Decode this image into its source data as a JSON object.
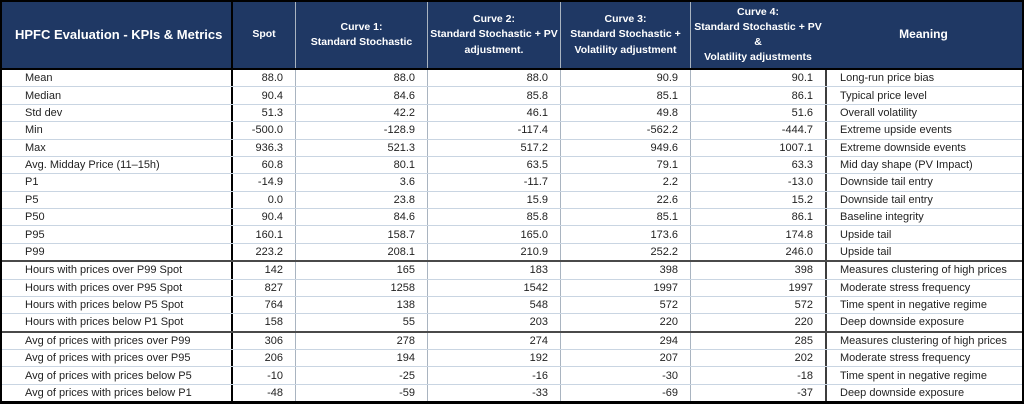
{
  "colors": {
    "header_bg": "#1f3864",
    "header_text": "#ffffff",
    "grid_horizontal": "#c9d5e2",
    "grid_vertical": "#a9b4c0",
    "divider_black": "#000000",
    "group_separator": "#4a4a4a"
  },
  "header": {
    "title": "HPFC Evaluation - KPIs & Metrics",
    "columns": [
      "Spot",
      "Curve 1:\nStandard Stochastic",
      "Curve 2:\nStandard Stochastic + PV\nadjustment.",
      "Curve 3:\nStandard Stochastic +\nVolatility adjustment",
      "Curve 4:\nStandard Stochastic + PV &\nVolatility adjustments",
      "Meaning"
    ]
  },
  "rows": [
    {
      "label": "Mean",
      "values": [
        "88.0",
        "88.0",
        "88.0",
        "90.9",
        "90.1"
      ],
      "meaning": "Long-run price bias"
    },
    {
      "label": "Median",
      "values": [
        "90.4",
        "84.6",
        "85.8",
        "85.1",
        "86.1"
      ],
      "meaning": "Typical price level"
    },
    {
      "label": "Std dev",
      "values": [
        "51.3",
        "42.2",
        "46.1",
        "49.8",
        "51.6"
      ],
      "meaning": "Overall volatility"
    },
    {
      "label": "Min",
      "values": [
        "-500.0",
        "-128.9",
        "-117.4",
        "-562.2",
        "-444.7"
      ],
      "meaning": "Extreme upside events"
    },
    {
      "label": "Max",
      "values": [
        "936.3",
        "521.3",
        "517.2",
        "949.6",
        "1007.1"
      ],
      "meaning": "Extreme downside events"
    },
    {
      "label": "Avg. Midday Price (11–15h)",
      "values": [
        "60.8",
        "80.1",
        "63.5",
        "79.1",
        "63.3"
      ],
      "meaning": "Mid day shape (PV Impact)"
    },
    {
      "label": "P1",
      "values": [
        "-14.9",
        "3.6",
        "-11.7",
        "2.2",
        "-13.0"
      ],
      "meaning": "Downside tail entry"
    },
    {
      "label": "P5",
      "values": [
        "0.0",
        "23.8",
        "15.9",
        "22.6",
        "15.2"
      ],
      "meaning": "Downside tail entry"
    },
    {
      "label": "P50",
      "values": [
        "90.4",
        "84.6",
        "85.8",
        "85.1",
        "86.1"
      ],
      "meaning": "Baseline integrity"
    },
    {
      "label": "P95",
      "values": [
        "160.1",
        "158.7",
        "165.0",
        "173.6",
        "174.8"
      ],
      "meaning": "Upside tail"
    },
    {
      "label": "P99",
      "values": [
        "223.2",
        "208.1",
        "210.9",
        "252.2",
        "246.0"
      ],
      "meaning": "Upside tail"
    },
    {
      "label": "Hours with prices over P99 Spot",
      "values": [
        "142",
        "165",
        "183",
        "398",
        "398"
      ],
      "meaning": "Measures clustering of high prices",
      "group_start": true
    },
    {
      "label": "Hours with prices over P95 Spot",
      "values": [
        "827",
        "1258",
        "1542",
        "1997",
        "1997"
      ],
      "meaning": "Moderate stress frequency"
    },
    {
      "label": "Hours with prices below P5 Spot",
      "values": [
        "764",
        "138",
        "548",
        "572",
        "572"
      ],
      "meaning": "Time spent in negative regime"
    },
    {
      "label": "Hours with prices below P1 Spot",
      "values": [
        "158",
        "55",
        "203",
        "220",
        "220"
      ],
      "meaning": "Deep downside exposure"
    },
    {
      "label": "Avg of prices with prices over P99",
      "values": [
        "306",
        "278",
        "274",
        "294",
        "285"
      ],
      "meaning": "Measures clustering of high prices",
      "group_start": true
    },
    {
      "label": "Avg of prices with prices over P95",
      "values": [
        "206",
        "194",
        "192",
        "207",
        "202"
      ],
      "meaning": "Moderate stress frequency"
    },
    {
      "label": "Avg of prices with prices below P5",
      "values": [
        "-10",
        "-25",
        "-16",
        "-30",
        "-18"
      ],
      "meaning": "Time spent in negative regime"
    },
    {
      "label": "Avg of prices with prices below P1",
      "values": [
        "-48",
        "-59",
        "-33",
        "-69",
        "-37"
      ],
      "meaning": "Deep downside exposure"
    }
  ]
}
